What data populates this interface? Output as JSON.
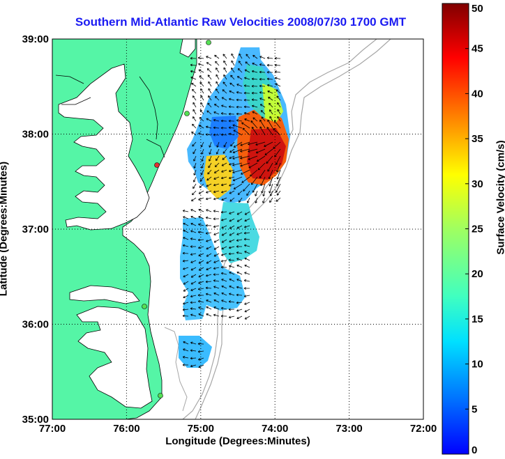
{
  "title": "Southern Mid-Atlantic Raw Velocities 2008/07/30 1700 GMT",
  "map": {
    "xlabel": "Longitude (Degrees:Minutes)",
    "ylabel": "Latitude (Degrees:Minutes)",
    "x_ticks": [
      "77:00",
      "76:00",
      "75:00",
      "74:00",
      "73:00",
      "72:00"
    ],
    "y_ticks": [
      "39:00",
      "38:00",
      "37:00",
      "36:00",
      "35:00"
    ],
    "lon_range": [
      -77,
      -72
    ],
    "lat_range": [
      35,
      39
    ],
    "land_color": "#55f5a6",
    "water_color": "#ffffff",
    "grid": true
  },
  "colorbar": {
    "label": "Surface Velocity (cm/s)",
    "ticks": [
      "0",
      "5",
      "10",
      "15",
      "20",
      "25",
      "30",
      "35",
      "40",
      "45",
      "50"
    ],
    "range": [
      0,
      50
    ],
    "colormap": "jet"
  }
}
